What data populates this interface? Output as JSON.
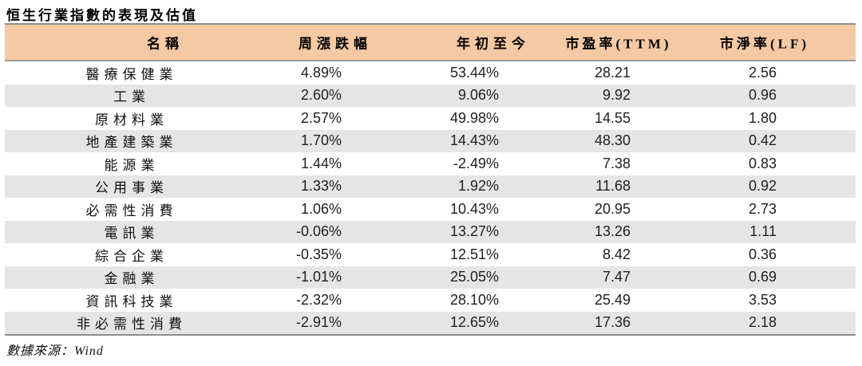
{
  "title": "恒生行業指數的表現及估值",
  "colors": {
    "header_bg": "#F5C9A4",
    "stripe_bg": "#E5E5E5",
    "rule": "#8F8F8F"
  },
  "table": {
    "headers": [
      "名稱",
      "周漲跌幅",
      "年初至今",
      "市盈率(TTM)",
      "市淨率(LF)"
    ],
    "rows": [
      {
        "name": "醫療保健業",
        "week": "4.89%",
        "ytd": "53.44%",
        "pe": "28.21",
        "pb": "2.56"
      },
      {
        "name": "工業",
        "week": "2.60%",
        "ytd": "9.06%",
        "pe": "9.92",
        "pb": "0.96"
      },
      {
        "name": "原材料業",
        "week": "2.57%",
        "ytd": "49.98%",
        "pe": "14.55",
        "pb": "1.80"
      },
      {
        "name": "地產建築業",
        "week": "1.70%",
        "ytd": "14.43%",
        "pe": "48.30",
        "pb": "0.42"
      },
      {
        "name": "能源業",
        "week": "1.44%",
        "ytd": "-2.49%",
        "pe": "7.38",
        "pb": "0.83"
      },
      {
        "name": "公用事業",
        "week": "1.33%",
        "ytd": "1.92%",
        "pe": "11.68",
        "pb": "0.92"
      },
      {
        "name": "必需性消費",
        "week": "1.06%",
        "ytd": "10.43%",
        "pe": "20.95",
        "pb": "2.73"
      },
      {
        "name": "電訊業",
        "week": "-0.06%",
        "ytd": "13.27%",
        "pe": "13.26",
        "pb": "1.11"
      },
      {
        "name": "綜合企業",
        "week": "-0.35%",
        "ytd": "12.51%",
        "pe": "8.42",
        "pb": "0.36"
      },
      {
        "name": "金融業",
        "week": "-1.01%",
        "ytd": "25.05%",
        "pe": "7.47",
        "pb": "0.69"
      },
      {
        "name": "資訊科技業",
        "week": "-2.32%",
        "ytd": "28.10%",
        "pe": "25.49",
        "pb": "3.53"
      },
      {
        "name": "非必需性消費",
        "week": "-2.91%",
        "ytd": "12.65%",
        "pe": "17.36",
        "pb": "2.18"
      }
    ]
  },
  "footer": {
    "source": "數據來源：Wind"
  }
}
